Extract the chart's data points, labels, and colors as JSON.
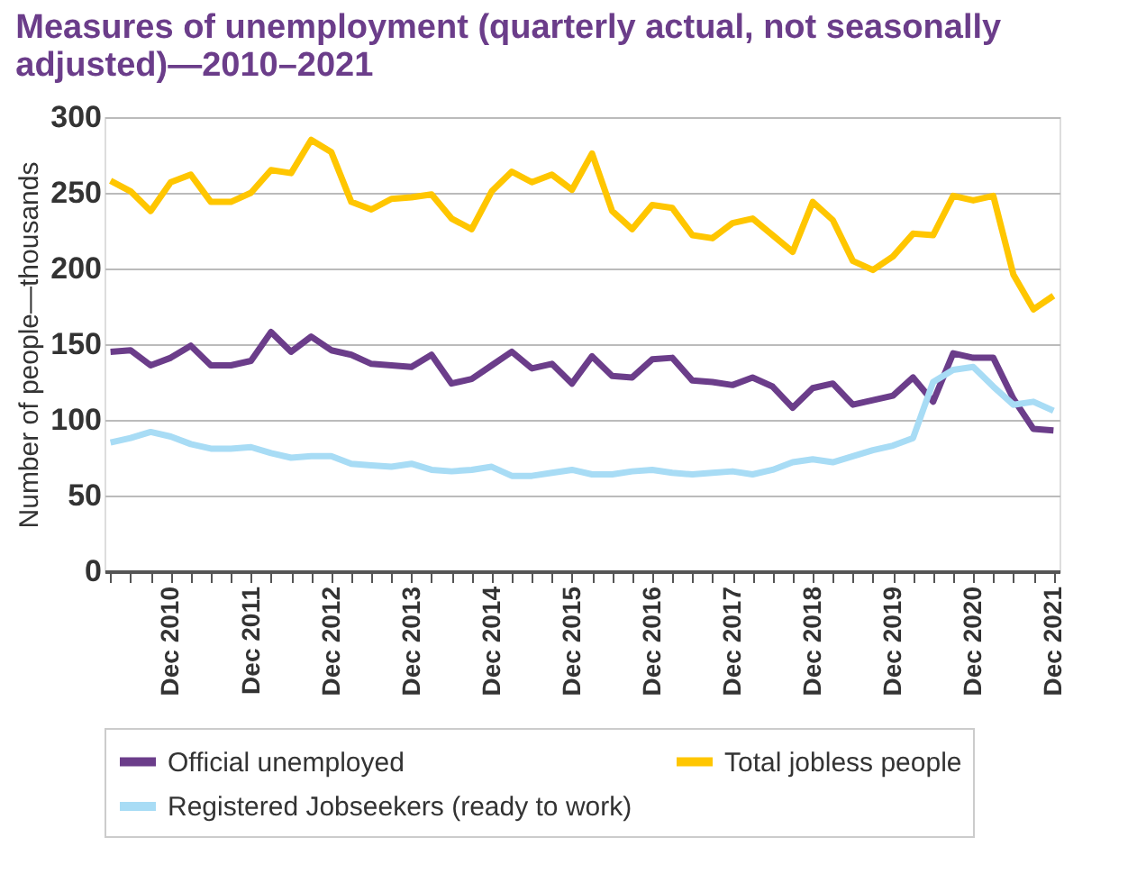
{
  "chart_data": {
    "type": "line",
    "title": "Measures of unemployment (quarterly actual, not seasonally adjusted)—2010–2021",
    "ylabel": "Number of people—thousands",
    "categories": [
      null,
      null,
      null,
      "Dec 2010",
      null,
      null,
      null,
      "Dec 2011",
      null,
      null,
      null,
      "Dec 2012",
      null,
      null,
      null,
      "Dec 2013",
      null,
      null,
      null,
      "Dec 2014",
      null,
      null,
      null,
      "Dec 2015",
      null,
      null,
      null,
      "Dec 2016",
      null,
      null,
      null,
      "Dec 2017",
      null,
      null,
      null,
      "Dec 2018",
      null,
      null,
      null,
      "Dec 2019",
      null,
      null,
      null,
      "Dec 2020",
      null,
      null,
      null,
      "Dec 2021"
    ],
    "series": [
      {
        "name": "Official unemployed",
        "color": "#6b3d8a",
        "values": [
          145,
          146,
          136,
          141,
          149,
          136,
          136,
          139,
          158,
          145,
          155,
          146,
          143,
          137,
          136,
          135,
          143,
          124,
          127,
          136,
          145,
          134,
          137,
          124,
          142,
          129,
          128,
          140,
          141,
          126,
          125,
          123,
          128,
          122,
          108,
          121,
          124,
          110,
          113,
          116,
          128,
          112,
          144,
          141,
          141,
          114,
          94,
          93
        ]
      },
      {
        "name": "Total jobless people",
        "color": "#ffc600",
        "values": [
          258,
          251,
          238,
          257,
          262,
          244,
          244,
          250,
          265,
          263,
          285,
          277,
          244,
          239,
          246,
          247,
          249,
          233,
          226,
          251,
          264,
          257,
          262,
          252,
          276,
          238,
          226,
          242,
          240,
          222,
          220,
          230,
          233,
          222,
          211,
          244,
          232,
          205,
          199,
          208,
          223,
          222,
          248,
          245,
          248,
          196,
          173,
          182
        ]
      },
      {
        "name": "Registered Jobseekers (ready to work)",
        "color": "#a8dcf5",
        "values": [
          85,
          88,
          92,
          89,
          84,
          81,
          81,
          82,
          78,
          75,
          76,
          76,
          71,
          70,
          69,
          71,
          67,
          66,
          67,
          69,
          63,
          63,
          65,
          67,
          64,
          64,
          66,
          67,
          65,
          64,
          65,
          66,
          64,
          67,
          72,
          74,
          72,
          76,
          80,
          83,
          88,
          125,
          133,
          135,
          122,
          110,
          112,
          106
        ]
      }
    ],
    "ylim": [
      0,
      300
    ],
    "yticks": [
      0,
      50,
      100,
      150,
      200,
      250,
      300
    ],
    "grid": "y",
    "legend": "bottom",
    "line_style": "solid",
    "marker": "none"
  }
}
